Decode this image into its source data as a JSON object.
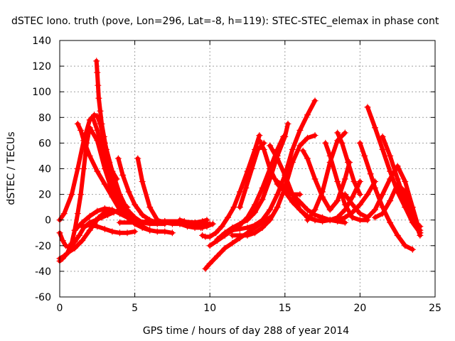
{
  "chart_data": {
    "type": "scatter",
    "title": "dSTEC Iono. truth (pove, Lon=296, Lat=-8, h=119): STEC-STEC_elemax in phase cont",
    "xlabel": "GPS time / hours of day 288 of year 2014",
    "ylabel": "dSTEC  / TECUs",
    "xlim": [
      0,
      25
    ],
    "ylim": [
      -60,
      140
    ],
    "xticks": [
      0,
      5,
      10,
      15,
      20,
      25
    ],
    "yticks": [
      -60,
      -40,
      -20,
      0,
      20,
      40,
      60,
      80,
      100,
      120,
      140
    ],
    "grid": true,
    "marker": "+",
    "color": "#ff0000",
    "series": [
      {
        "x": [
          0.0,
          0.3,
          0.8,
          1.2,
          1.6,
          2.0,
          2.3,
          2.5,
          2.7,
          3.0,
          3.5,
          4.0,
          4.5,
          5.0,
          5.5,
          6.0,
          6.5,
          7.0
        ],
        "y": [
          0,
          5,
          20,
          40,
          62,
          78,
          82,
          81,
          75,
          60,
          38,
          20,
          8,
          2,
          -2,
          -3,
          -3,
          -3
        ]
      },
      {
        "x": [
          2.45,
          2.5,
          2.55,
          2.6,
          2.7,
          2.8,
          2.95,
          3.1,
          3.3,
          3.5,
          3.8
        ],
        "y": [
          124,
          115,
          105,
          95,
          85,
          75,
          65,
          55,
          45,
          38,
          32
        ]
      },
      {
        "x": [
          0.0,
          0.2,
          0.5,
          0.8,
          1.0,
          1.2,
          1.4,
          1.6,
          1.8,
          2.0,
          2.5,
          3.0,
          3.5,
          4.0,
          4.5,
          5.0
        ],
        "y": [
          -32,
          -30,
          -26,
          -18,
          -8,
          5,
          20,
          40,
          60,
          72,
          62,
          40,
          22,
          10,
          3,
          0
        ]
      },
      {
        "x": [
          1.2,
          1.4,
          1.6,
          2.0,
          2.5,
          3.0,
          3.5,
          4.0,
          4.5,
          5.0,
          5.5,
          6.0,
          6.5,
          7.0,
          7.5
        ],
        "y": [
          75,
          70,
          62,
          50,
          38,
          28,
          18,
          8,
          2,
          -2,
          -5,
          -8,
          -9,
          -9,
          -10
        ]
      },
      {
        "x": [
          0.0,
          0.2,
          0.4,
          0.6,
          0.8,
          1.0,
          1.3,
          1.6,
          2.0,
          2.4,
          2.8,
          3.2,
          3.6,
          4.0,
          4.5
        ],
        "y": [
          -10,
          -16,
          -20,
          -21,
          -20,
          -17,
          -12,
          -6,
          -2,
          0,
          2,
          4,
          6,
          8,
          10
        ]
      },
      {
        "x": [
          0.0,
          0.3,
          0.6,
          1.0,
          1.5,
          2.0,
          2.3,
          2.6,
          3.0,
          3.3
        ],
        "y": [
          -30,
          -28,
          -25,
          -22,
          -16,
          -8,
          -3,
          2,
          6,
          8
        ]
      },
      {
        "x": [
          1.0,
          1.5,
          2.0,
          2.5,
          3.0,
          3.5,
          4.0,
          4.5,
          5.0,
          5.5
        ],
        "y": [
          -8,
          -2,
          3,
          7,
          9,
          8,
          5,
          2,
          -1,
          -3
        ]
      },
      {
        "x": [
          1.5,
          2.0,
          2.5,
          3.0,
          3.5,
          4.0,
          4.5,
          5.0
        ],
        "y": [
          -5,
          -4,
          -5,
          -7,
          -9,
          -10,
          -10,
          -9
        ]
      },
      {
        "x": [
          2.2,
          2.5,
          3.0,
          3.5,
          4.0,
          4.5,
          5.0,
          5.5,
          6.0
        ],
        "y": [
          80,
          70,
          50,
          30,
          15,
          4,
          -3,
          -6,
          -8
        ]
      },
      {
        "x": [
          3.9,
          4.2,
          4.6,
          5.0,
          5.5,
          6.0,
          6.5,
          7.0
        ],
        "y": [
          48,
          35,
          22,
          12,
          4,
          0,
          -2,
          -2
        ]
      },
      {
        "x": [
          5.2,
          5.5,
          6.0,
          6.5,
          7.0,
          7.5,
          8.0,
          8.5,
          9.0,
          9.5,
          10.0
        ],
        "y": [
          48,
          30,
          10,
          0,
          -2,
          -3,
          -3,
          -3,
          -3,
          -3,
          -3
        ]
      },
      {
        "x": [
          4.0,
          5.0,
          6.0,
          7.0,
          8.0,
          9.0,
          9.5,
          9.8
        ],
        "y": [
          -2,
          -2,
          -1,
          -1,
          -1,
          -2,
          -1,
          0
        ]
      },
      {
        "x": [
          6.5,
          7.0,
          7.5,
          8.0,
          8.5,
          9.0,
          9.5
        ],
        "y": [
          -1,
          -1,
          -2,
          -3,
          -5,
          -6,
          -6
        ]
      },
      {
        "x": [
          8.0,
          8.3,
          8.6,
          9.0,
          9.4,
          9.8,
          10.2
        ],
        "y": [
          0,
          -1,
          -3,
          -5,
          -6,
          -5,
          -3
        ]
      },
      {
        "x": [
          9.5,
          9.7,
          10.0,
          10.4,
          10.8,
          11.2,
          11.6,
          12.0,
          12.5,
          13.0,
          13.3
        ],
        "y": [
          -12,
          -13,
          -13,
          -10,
          -5,
          2,
          10,
          22,
          38,
          55,
          66
        ]
      },
      {
        "x": [
          9.7,
          10.0,
          10.5,
          11.0,
          11.5,
          12.0,
          12.5,
          13.0,
          13.5,
          14.0
        ],
        "y": [
          -38,
          -34,
          -28,
          -22,
          -18,
          -14,
          -10,
          -6,
          -2,
          2
        ]
      },
      {
        "x": [
          10.0,
          10.5,
          11.0,
          11.5,
          12.0,
          12.5,
          13.0,
          13.5,
          14.0,
          14.5,
          14.9
        ],
        "y": [
          -20,
          -16,
          -12,
          -8,
          -4,
          2,
          12,
          25,
          40,
          55,
          65
        ]
      },
      {
        "x": [
          10.5,
          11.0,
          11.5,
          12.0,
          12.5,
          13.0,
          13.5,
          14.0,
          14.5,
          15.0,
          15.2
        ],
        "y": [
          -15,
          -10,
          -6,
          -3,
          0,
          6,
          16,
          32,
          50,
          65,
          75
        ]
      },
      {
        "x": [
          11.0,
          11.5,
          12.0,
          12.5,
          13.0,
          13.5,
          14.0,
          14.5,
          15.0,
          15.5,
          16.0,
          16.5,
          17.0
        ],
        "y": [
          -10,
          -8,
          -7,
          -6,
          -4,
          0,
          8,
          20,
          35,
          55,
          70,
          82,
          93
        ]
      },
      {
        "x": [
          11.5,
          12.0,
          12.5,
          13.0,
          13.5,
          14.0,
          14.5,
          15.0,
          15.5,
          16.0,
          16.5,
          17.0
        ],
        "y": [
          -12,
          -12,
          -12,
          -10,
          -6,
          0,
          10,
          25,
          45,
          58,
          64,
          66
        ]
      },
      {
        "x": [
          12.0,
          12.4,
          12.8,
          13.2,
          13.6
        ],
        "y": [
          10,
          25,
          40,
          55,
          60
        ]
      },
      {
        "x": [
          13.3,
          13.6,
          14.0,
          14.5,
          15.0,
          15.5,
          16.0
        ],
        "y": [
          62,
          55,
          40,
          28,
          22,
          20,
          20
        ]
      },
      {
        "x": [
          14.0,
          14.5,
          15.0,
          15.5,
          16.0,
          16.5,
          17.0
        ],
        "y": [
          58,
          48,
          35,
          20,
          8,
          2,
          0
        ]
      },
      {
        "x": [
          14.5,
          15.0,
          15.5,
          16.0,
          16.5,
          17.0,
          17.5,
          18.0,
          18.5,
          19.0
        ],
        "y": [
          30,
          26,
          20,
          14,
          8,
          4,
          2,
          0,
          -1,
          -2
        ]
      },
      {
        "x": [
          15.0,
          15.5,
          16.0,
          16.5,
          17.0,
          17.5,
          18.0,
          18.5,
          19.0,
          19.5,
          20.0
        ],
        "y": [
          22,
          14,
          8,
          3,
          0,
          -1,
          0,
          2,
          8,
          18,
          30
        ]
      },
      {
        "x": [
          16.2,
          16.5,
          17.0,
          17.5,
          18.0,
          18.5,
          19.0,
          19.3
        ],
        "y": [
          54,
          48,
          32,
          18,
          8,
          15,
          32,
          45
        ]
      },
      {
        "x": [
          16.5,
          17.0,
          17.5,
          18.0,
          18.5,
          19.0
        ],
        "y": [
          0,
          8,
          22,
          45,
          62,
          68
        ]
      },
      {
        "x": [
          17.7,
          18.0,
          18.5,
          19.0,
          19.5,
          20.0,
          20.5
        ],
        "y": [
          60,
          50,
          30,
          12,
          2,
          0,
          0
        ]
      },
      {
        "x": [
          18.5,
          18.8,
          19.2,
          19.6,
          20.0
        ],
        "y": [
          68,
          60,
          45,
          30,
          20
        ]
      },
      {
        "x": [
          18.0,
          18.5,
          19.0,
          19.5,
          20.0,
          20.5,
          21.0
        ],
        "y": [
          0,
          0,
          2,
          6,
          12,
          20,
          30
        ]
      },
      {
        "x": [
          20.0,
          20.3,
          20.7,
          21.0,
          21.5,
          22.0,
          22.5,
          23.0,
          23.5
        ],
        "y": [
          60,
          50,
          36,
          25,
          10,
          -2,
          -12,
          -20,
          -23
        ]
      },
      {
        "x": [
          20.5,
          21.0,
          21.5,
          22.0,
          22.5,
          23.0,
          23.5,
          24.0
        ],
        "y": [
          88,
          72,
          55,
          38,
          22,
          10,
          0,
          -5
        ]
      },
      {
        "x": [
          21.5,
          22.0,
          22.5,
          23.0,
          23.5,
          24.0
        ],
        "y": [
          65,
          50,
          32,
          15,
          2,
          -8
        ]
      },
      {
        "x": [
          19.0,
          19.5,
          20.0,
          20.5,
          21.0,
          21.5,
          22.0,
          22.5,
          23.0,
          23.5,
          24.0
        ],
        "y": [
          20,
          12,
          5,
          2,
          8,
          20,
          32,
          42,
          30,
          10,
          -10
        ]
      },
      {
        "x": [
          21.0,
          21.5,
          22.0,
          22.5,
          23.0,
          23.5,
          24.0
        ],
        "y": [
          2,
          5,
          15,
          28,
          22,
          5,
          -12
        ]
      },
      {
        "x": [
          22.5,
          23.0,
          23.5,
          24.0
        ],
        "y": [
          24,
          10,
          -2,
          -10
        ]
      }
    ]
  }
}
